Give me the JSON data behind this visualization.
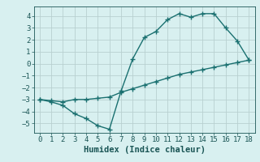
{
  "line1_x": [
    0,
    1,
    2,
    3,
    4,
    5,
    6,
    7,
    8,
    9,
    10,
    11,
    12,
    13,
    14,
    15,
    16,
    17,
    18
  ],
  "line1_y": [
    -3.0,
    -3.2,
    -3.5,
    -4.2,
    -4.6,
    -5.2,
    -5.5,
    -2.3,
    0.4,
    2.2,
    2.7,
    3.7,
    4.2,
    3.9,
    4.2,
    4.2,
    3.0,
    1.9,
    0.3
  ],
  "line2_x": [
    0,
    1,
    2,
    3,
    4,
    5,
    6,
    7,
    8,
    9,
    10,
    11,
    12,
    13,
    14,
    15,
    16,
    17,
    18
  ],
  "line2_y": [
    -3.0,
    -3.1,
    -3.2,
    -3.0,
    -3.0,
    -2.9,
    -2.8,
    -2.4,
    -2.1,
    -1.8,
    -1.5,
    -1.2,
    -0.9,
    -0.7,
    -0.5,
    -0.3,
    -0.1,
    0.1,
    0.3
  ],
  "line_color": "#1a7070",
  "bg_color": "#d8f0f0",
  "grid_color": "#b8d0d0",
  "xlabel": "Humidex (Indice chaleur)",
  "xlim": [
    -0.5,
    18.5
  ],
  "ylim": [
    -5.8,
    4.8
  ],
  "xticks": [
    0,
    1,
    2,
    3,
    4,
    5,
    6,
    7,
    8,
    9,
    10,
    11,
    12,
    13,
    14,
    15,
    16,
    17,
    18
  ],
  "yticks": [
    -5,
    -4,
    -3,
    -2,
    -1,
    0,
    1,
    2,
    3,
    4
  ],
  "marker": "+",
  "markersize": 4,
  "linewidth": 1.0,
  "xlabel_fontsize": 7.5,
  "tick_fontsize": 6.5
}
